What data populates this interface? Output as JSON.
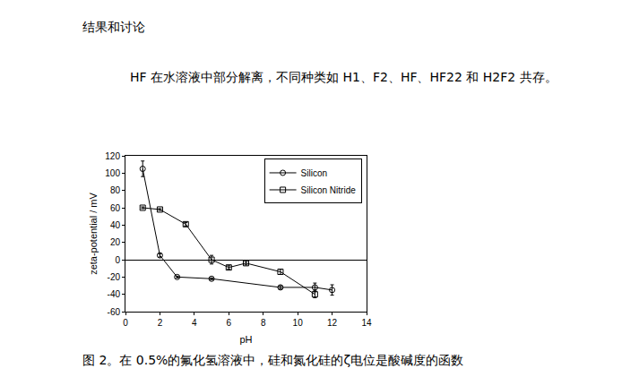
{
  "heading": "结果和讨论",
  "paragraph": "HF 在水溶液中部分解离，不同种类如 H1、F2、HF、HF22 和 H2F2 共存。",
  "chart_data": {
    "type": "line",
    "xlabel": "pH",
    "ylabel": "zeta-potential / mV",
    "xlim": [
      0,
      14
    ],
    "xticks": [
      0,
      2,
      4,
      6,
      8,
      10,
      12,
      14
    ],
    "ylim": [
      -60,
      120
    ],
    "yticks": [
      -60,
      -40,
      -20,
      0,
      20,
      40,
      60,
      80,
      100,
      120
    ],
    "grid": false,
    "legend": "upper right",
    "series": [
      {
        "name": "Silicon",
        "color": "#000000",
        "marker": "circle-open",
        "line_style": "solid",
        "x": [
          1,
          2,
          3,
          5,
          9,
          11,
          12
        ],
        "values": [
          105,
          5,
          -20,
          -22,
          -32,
          -32,
          -35
        ],
        "error": [
          9,
          2,
          1,
          1,
          2,
          5,
          6
        ]
      },
      {
        "name": "Silicon Nitride",
        "color": "#000000",
        "marker": "square-open",
        "line_style": "solid",
        "x": [
          1,
          2,
          3.5,
          5,
          6,
          7,
          9,
          11
        ],
        "values": [
          60,
          58,
          41,
          0,
          -9,
          -4,
          -14,
          -40
        ],
        "error": [
          1,
          1,
          2,
          5,
          2,
          2,
          3,
          4
        ]
      }
    ]
  },
  "caption": "图 2。在 0.5%的氟化氢溶液中，硅和氮化硅的ζ电位是酸碱度的函数"
}
